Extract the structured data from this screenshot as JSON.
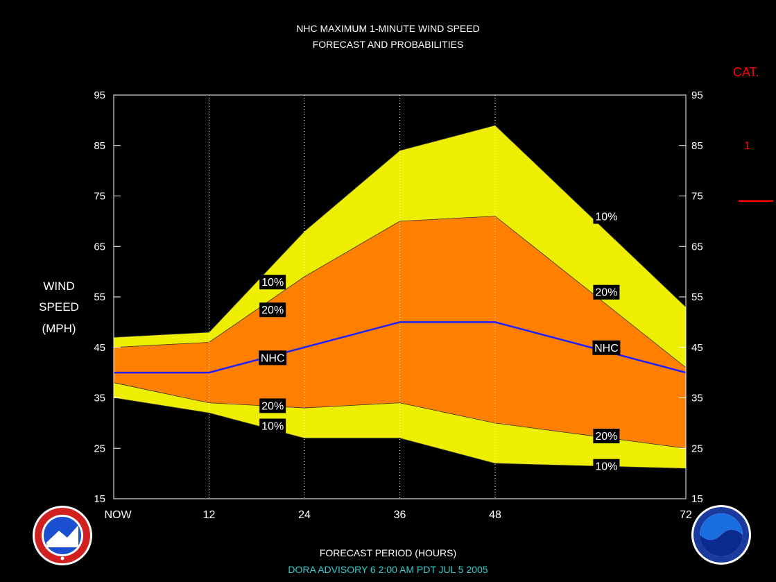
{
  "title_line1": "NHC MAXIMUM 1-MINUTE WIND SPEED",
  "title_line2": "FORECAST AND PROBABILITIES",
  "ylabel": [
    "WIND",
    "SPEED",
    "(MPH)"
  ],
  "xlabel": "FORECAST PERIOD (HOURS)",
  "advisory": "DORA   ADVISORY  6 2:00 AM  PDT JUL  5  2005",
  "category_header": "CAT.",
  "category_label": "1",
  "colors": {
    "background": "#000000",
    "outer_band": "#eeee00",
    "inner_band": "#ff8000",
    "nhc_line": "#2020ff",
    "category_red": "#ff0000",
    "advisory_text": "#33cccc"
  },
  "chart_data": {
    "type": "area",
    "title": "NHC MAXIMUM 1-MINUTE WIND SPEED FORECAST AND PROBABILITIES",
    "xlabel": "FORECAST PERIOD (HOURS)",
    "ylabel": "WIND SPEED (MPH)",
    "xlim": [
      0,
      72
    ],
    "ylim": [
      15,
      95
    ],
    "x_ticks": [
      0,
      12,
      24,
      36,
      48,
      72
    ],
    "x_tick_labels": [
      "NOW",
      "12",
      "24",
      "36",
      "48",
      "72"
    ],
    "y_ticks": [
      15,
      25,
      35,
      45,
      55,
      65,
      75,
      85,
      95
    ],
    "x": [
      0,
      12,
      24,
      36,
      48,
      60,
      72
    ],
    "series": [
      {
        "name": "10%",
        "role": "upper_10",
        "values": [
          47,
          48,
          68,
          84,
          89,
          71,
          53
        ]
      },
      {
        "name": "20%",
        "role": "upper_20",
        "values": [
          45,
          46,
          59,
          70,
          71,
          56,
          41
        ]
      },
      {
        "name": "NHC",
        "role": "nhc",
        "values": [
          40,
          40,
          45,
          50,
          50,
          45,
          40
        ]
      },
      {
        "name": "20%",
        "role": "lower_20",
        "values": [
          38,
          34,
          33,
          34,
          30,
          27.5,
          25
        ]
      },
      {
        "name": "10%",
        "role": "lower_10",
        "values": [
          35,
          32,
          27,
          27,
          22,
          21.5,
          21
        ]
      }
    ],
    "labels": [
      {
        "text": "10%",
        "x": 20,
        "y": 58
      },
      {
        "text": "20%",
        "x": 20,
        "y": 52.5
      },
      {
        "text": "NHC",
        "x": 20,
        "y": 43
      },
      {
        "text": "20%",
        "x": 20,
        "y": 33.5
      },
      {
        "text": "10%",
        "x": 20,
        "y": 29.5
      },
      {
        "text": "10%",
        "x": 62,
        "y": 71
      },
      {
        "text": "20%",
        "x": 62,
        "y": 56
      },
      {
        "text": "NHC",
        "x": 62,
        "y": 45
      },
      {
        "text": "20%",
        "x": 62,
        "y": 27.5
      },
      {
        "text": "10%",
        "x": 62,
        "y": 21.5
      }
    ],
    "category_threshold": 74,
    "grid": "vertical dotted at 12, 24, 36, 48"
  }
}
